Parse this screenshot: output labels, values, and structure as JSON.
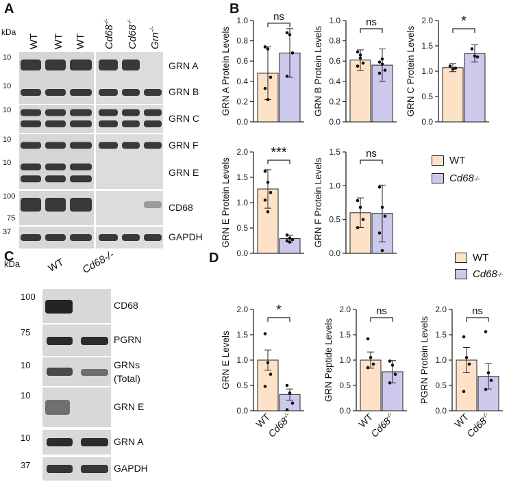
{
  "panels": {
    "A": "A",
    "B": "B",
    "C": "C",
    "D": "D"
  },
  "panelA": {
    "kda_header": "kDa",
    "lanes": [
      "WT",
      "WT",
      "WT",
      "Cd68",
      "Cd68",
      "Grn"
    ],
    "lane_sups": [
      "",
      "",
      "",
      "-/-",
      "-/-",
      "-/-"
    ],
    "blots": [
      {
        "label": "GRN A",
        "marker": "10"
      },
      {
        "label": "GRN B",
        "marker": "10"
      },
      {
        "label": "GRN C",
        "marker": "10"
      },
      {
        "label": "GRN F",
        "marker": "10"
      },
      {
        "label": "GRN E",
        "marker": "10"
      },
      {
        "label": "CD68",
        "marker": "100",
        "marker2": "75"
      },
      {
        "label": "GAPDH",
        "marker": "37"
      }
    ]
  },
  "panelC": {
    "kda_header": "kDa",
    "lanes": [
      "WT",
      "Cd68-/-"
    ],
    "blots": [
      {
        "label": "CD68",
        "marker": "100"
      },
      {
        "label": "PGRN",
        "marker": "75"
      },
      {
        "label": "GRNs",
        "label2": "(Total)",
        "marker": "10"
      },
      {
        "label": "GRN E",
        "marker": "10"
      },
      {
        "label": "GRN A",
        "marker": "10"
      },
      {
        "label": "GAPDH",
        "marker": "37"
      }
    ]
  },
  "legend": {
    "wt": "WT",
    "cd68": "Cd68",
    "cd68_sup": "-/-"
  },
  "colors": {
    "wt": "#fde2c8",
    "cd68": "#ccc9ec",
    "stroke": "#222222"
  },
  "chart_data": [
    {
      "type": "bar",
      "panel": "B",
      "ylabel": "GRN A Protein Levels",
      "ylim": [
        0,
        1.0
      ],
      "ticks": [
        "0.0",
        "0.2",
        "0.4",
        "0.6",
        "0.8",
        "1.0"
      ],
      "categories": [
        "WT",
        "Cd68-/-"
      ],
      "values": [
        0.48,
        0.68
      ],
      "error": [
        0.26,
        0.24
      ],
      "points": [
        [
          0.74,
          0.72,
          0.44,
          0.33,
          0.22
        ],
        [
          0.88,
          0.86,
          0.68,
          0.45
        ]
      ],
      "sig": "ns"
    },
    {
      "type": "bar",
      "panel": "B",
      "ylabel": "GRN B Protein Levels",
      "ylim": [
        0,
        1.0
      ],
      "ticks": [
        "0.0",
        "0.2",
        "0.4",
        "0.6",
        "0.8",
        "1.0"
      ],
      "categories": [
        "WT",
        "Cd68-/-"
      ],
      "values": [
        0.61,
        0.56
      ],
      "error": [
        0.1,
        0.16
      ],
      "points": [
        [
          0.69,
          0.63,
          0.58,
          0.55,
          0.66
        ],
        [
          0.59,
          0.57,
          0.51,
          0.48,
          0.62
        ]
      ],
      "sig": "ns"
    },
    {
      "type": "bar",
      "panel": "B",
      "ylabel": "GRN C Protein Levels",
      "ylim": [
        0,
        2.0
      ],
      "ticks": [
        "0.0",
        "0.5",
        "1.0",
        "1.5",
        "2.0"
      ],
      "categories": [
        "WT",
        "Cd68-/-"
      ],
      "values": [
        1.07,
        1.35
      ],
      "error": [
        0.08,
        0.17
      ],
      "points": [
        [
          1.1,
          1.04,
          1.06
        ],
        [
          1.44,
          1.3,
          1.28
        ]
      ],
      "sig": "*"
    },
    {
      "type": "bar",
      "panel": "B",
      "ylabel": "GRN E Protein Levels",
      "ylim": [
        0,
        2.0
      ],
      "ticks": [
        "0.0",
        "0.5",
        "1.0",
        "1.5",
        "2.0"
      ],
      "categories": [
        "WT",
        "Cd68-/-"
      ],
      "values": [
        1.27,
        0.29
      ],
      "error": [
        0.38,
        0.07
      ],
      "points": [
        [
          1.62,
          1.4,
          1.2,
          1.05,
          0.82
        ],
        [
          0.36,
          0.3,
          0.27,
          0.25,
          0.22
        ]
      ],
      "sig": "***"
    },
    {
      "type": "bar",
      "panel": "B",
      "ylabel": "GRN F Protein Levels",
      "ylim": [
        0,
        1.5
      ],
      "ticks": [
        "0.0",
        "0.5",
        "1.0",
        "1.5"
      ],
      "categories": [
        "WT",
        "Cd68-/-"
      ],
      "values": [
        0.6,
        0.59
      ],
      "error": [
        0.22,
        0.42
      ],
      "points": [
        [
          0.78,
          0.68,
          0.5,
          0.38
        ],
        [
          0.98,
          0.68,
          0.55,
          0.3,
          0.04
        ]
      ],
      "sig": "ns"
    },
    {
      "type": "bar",
      "panel": "D",
      "ylabel": "GRN E Levels",
      "ylim": [
        0,
        2.0
      ],
      "ticks": [
        "0.0",
        "0.5",
        "1.0",
        "1.5",
        "2.0"
      ],
      "categories": [
        "WT",
        "Cd68-/-"
      ],
      "values": [
        1.0,
        0.32
      ],
      "error": [
        0.2,
        0.11
      ],
      "points": [
        [
          1.52,
          0.95,
          0.72,
          0.48
        ],
        [
          0.5,
          0.35,
          0.15,
          0.02
        ]
      ],
      "sig": "*"
    },
    {
      "type": "bar",
      "panel": "D",
      "ylabel": "GRN Peptide Levels",
      "ylim": [
        0,
        2.0
      ],
      "ticks": [
        "0.0",
        "0.5",
        "1.0",
        "1.5",
        "2.0"
      ],
      "categories": [
        "WT",
        "Cd68-/-"
      ],
      "values": [
        1.0,
        0.77
      ],
      "error": [
        0.16,
        0.22
      ],
      "points": [
        [
          1.42,
          1.05,
          0.92,
          0.85
        ],
        [
          0.98,
          0.9,
          0.72,
          0.55
        ]
      ],
      "sig": "ns"
    },
    {
      "type": "bar",
      "panel": "D",
      "ylabel": "PGRN Protein Levels",
      "ylim": [
        0,
        2.0
      ],
      "ticks": [
        "0.0",
        "0.5",
        "1.0",
        "1.5",
        "2.0"
      ],
      "categories": [
        "WT",
        "Cd68-/-"
      ],
      "values": [
        1.0,
        0.68
      ],
      "error": [
        0.25,
        0.25
      ],
      "points": [
        [
          1.46,
          1.05,
          0.92,
          0.38
        ],
        [
          1.56,
          0.75,
          0.6,
          0.42
        ]
      ],
      "sig": "ns"
    }
  ]
}
